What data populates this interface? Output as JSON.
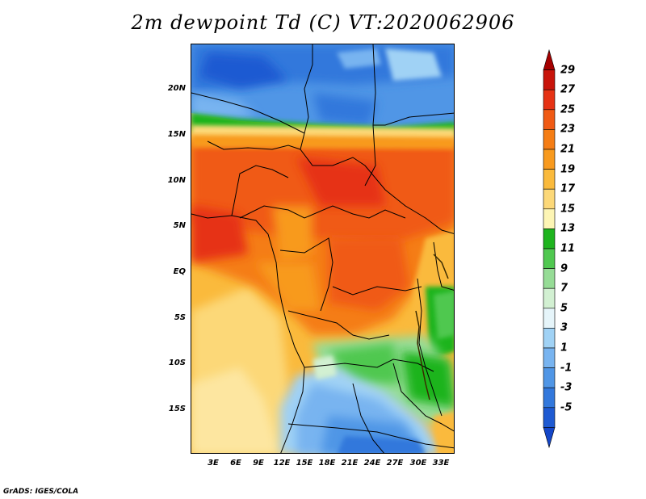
{
  "title": "2m dewpoint Td (C) VT:2020062906",
  "footer": "GrADS: IGES/COLA",
  "lat_labels": [
    "20N",
    "15N",
    "10N",
    "5N",
    "EQ",
    "5S",
    "10S",
    "15S"
  ],
  "lon_labels": [
    "3E",
    "6E",
    "9E",
    "12E",
    "15E",
    "18E",
    "21E",
    "24E",
    "27E",
    "30E",
    "33E"
  ],
  "colorbar": {
    "labels": [
      "29",
      "27",
      "25",
      "23",
      "21",
      "19",
      "17",
      "15",
      "13",
      "11",
      "9",
      "7",
      "5",
      "3",
      "1",
      "-1",
      "-3",
      "-5"
    ],
    "colors": [
      "#a50000",
      "#c8140a",
      "#e63214",
      "#f05a14",
      "#f57d14",
      "#f89a1e",
      "#faba3c",
      "#fcd878",
      "#fdf5b4",
      "#1eb41e",
      "#50c850",
      "#96dc96",
      "#d2f0d2",
      "#e6f5fa",
      "#a0d2f5",
      "#78b4f0",
      "#5096e6",
      "#3278dc",
      "#1e5ad2",
      "#1446c8"
    ]
  }
}
